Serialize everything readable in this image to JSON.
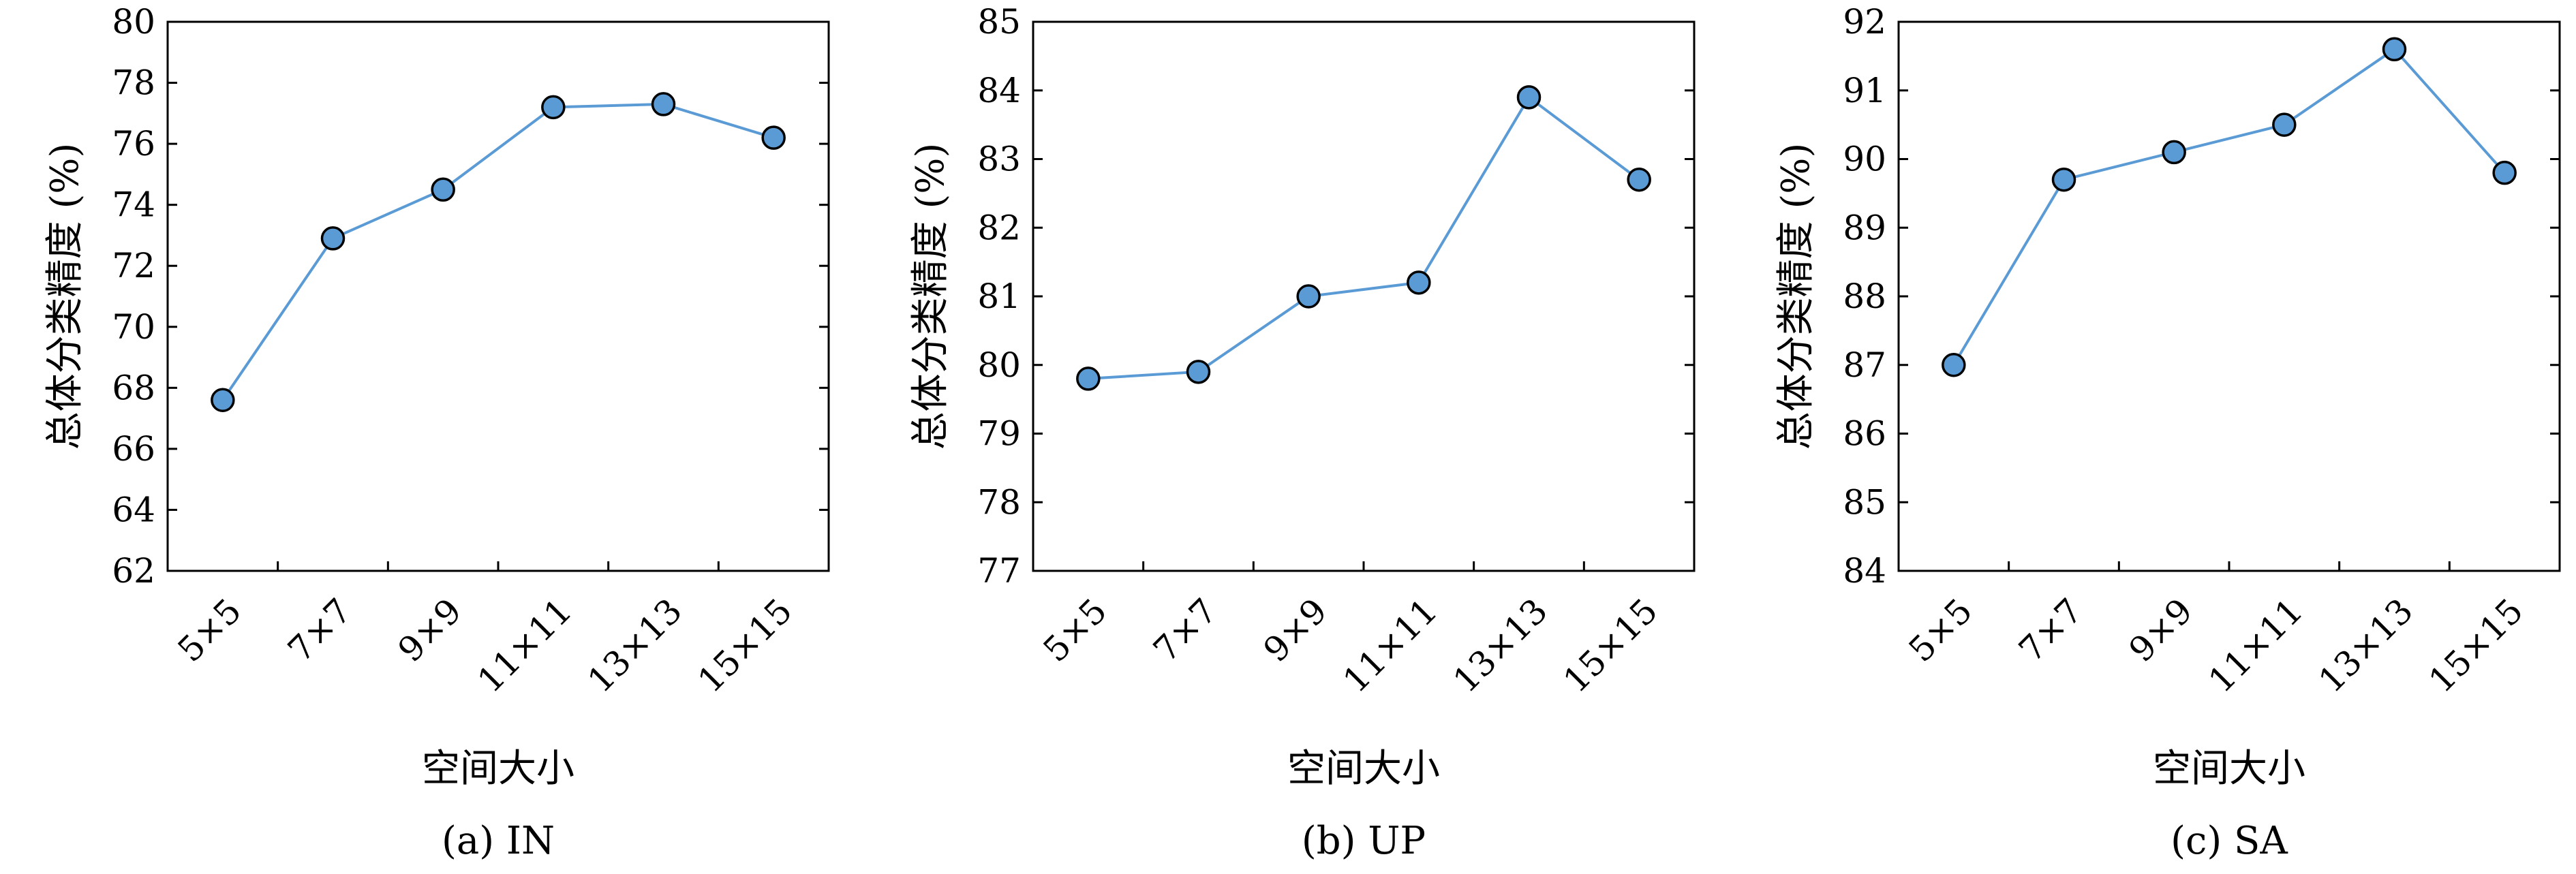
{
  "colors": {
    "line": "#5b9bd5",
    "marker_fill": "#5b9bd5",
    "marker_stroke": "#000000",
    "axis": "#000000"
  },
  "chart_data": [
    {
      "type": "line",
      "caption": "(a) IN",
      "xlabel": "空间大小",
      "ylabel": "总体分类精度 (%)",
      "categories": [
        "5×5",
        "7×7",
        "9×9",
        "11×11",
        "13×13",
        "15×15"
      ],
      "yticks": [
        "62",
        "64",
        "66",
        "68",
        "70",
        "72",
        "74",
        "76",
        "78",
        "80"
      ],
      "ylim": [
        62,
        80
      ],
      "values": [
        67.6,
        72.9,
        74.5,
        77.2,
        77.3,
        76.2
      ],
      "grid": false,
      "legend": "none"
    },
    {
      "type": "line",
      "caption": "(b) UP",
      "xlabel": "空间大小",
      "ylabel": "总体分类精度 (%)",
      "categories": [
        "5×5",
        "7×7",
        "9×9",
        "11×11",
        "13×13",
        "15×15"
      ],
      "yticks": [
        "77",
        "78",
        "79",
        "80",
        "81",
        "82",
        "83",
        "84",
        "85"
      ],
      "ylim": [
        77,
        85
      ],
      "values": [
        79.8,
        79.9,
        81.0,
        81.2,
        83.9,
        82.7
      ],
      "grid": false,
      "legend": "none"
    },
    {
      "type": "line",
      "caption": "(c) SA",
      "xlabel": "空间大小",
      "ylabel": "总体分类精度 (%)",
      "categories": [
        "5×5",
        "7×7",
        "9×9",
        "11×11",
        "13×13",
        "15×15"
      ],
      "yticks": [
        "84",
        "85",
        "86",
        "87",
        "88",
        "89",
        "90",
        "91",
        "92"
      ],
      "ylim": [
        84,
        92
      ],
      "values": [
        87.0,
        89.7,
        90.1,
        90.5,
        91.6,
        89.8
      ],
      "grid": false,
      "legend": "none"
    }
  ]
}
